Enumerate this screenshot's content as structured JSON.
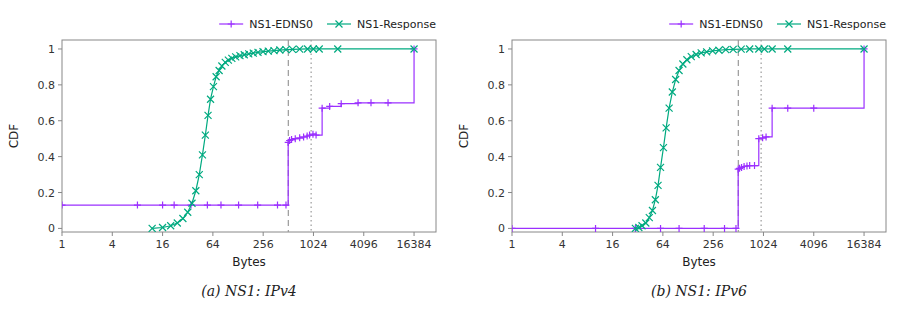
{
  "chart_data": [
    {
      "type": "line",
      "title": "(a)  NS1: IPv4",
      "xlabel": "Bytes",
      "ylabel": "CDF",
      "log": "x",
      "grid": false,
      "legend": "top",
      "xlim": [
        1,
        30000
      ],
      "ylim": [
        -0.02,
        1.05
      ],
      "xticks": [
        1,
        4,
        16,
        64,
        256,
        1024,
        4096,
        16384
      ],
      "yticks": [
        0,
        0.2,
        0.4,
        0.6,
        0.8,
        1
      ],
      "vlines": [
        {
          "value": 512,
          "line_style": "dashed"
        },
        {
          "value": 960,
          "line_style": "dotted"
        }
      ],
      "series": [
        {
          "name": "NS1-EDNS0",
          "color": "#9B30FF",
          "line_style": "step",
          "marker": "plus",
          "x": [
            1,
            8,
            16,
            22,
            35,
            55,
            80,
            130,
            220,
            380,
            480,
            510,
            530,
            560,
            620,
            700,
            780,
            860,
            920,
            1010,
            1100,
            1300,
            1600,
            2200,
            3500,
            5000,
            8000,
            16384
          ],
          "values": [
            0.13,
            0.13,
            0.13,
            0.13,
            0.13,
            0.13,
            0.13,
            0.13,
            0.13,
            0.13,
            0.13,
            0.48,
            0.49,
            0.495,
            0.5,
            0.505,
            0.51,
            0.515,
            0.52,
            0.525,
            0.52,
            0.67,
            0.68,
            0.695,
            0.7,
            0.7,
            0.7,
            1.0
          ]
        },
        {
          "name": "NS1-Response",
          "color": "#00AA80",
          "line_style": "solid",
          "marker": "x",
          "x": [
            12,
            16,
            20,
            24,
            28,
            32,
            36,
            40,
            44,
            48,
            52,
            56,
            60,
            65,
            70,
            76,
            82,
            90,
            98,
            108,
            120,
            135,
            152,
            172,
            195,
            222,
            255,
            295,
            345,
            405,
            480,
            575,
            700,
            870,
            1020,
            1200,
            2000,
            16384
          ],
          "values": [
            0.0,
            0.005,
            0.015,
            0.03,
            0.055,
            0.09,
            0.14,
            0.21,
            0.3,
            0.41,
            0.52,
            0.63,
            0.72,
            0.79,
            0.845,
            0.88,
            0.905,
            0.925,
            0.938,
            0.948,
            0.956,
            0.963,
            0.968,
            0.973,
            0.977,
            0.981,
            0.985,
            0.988,
            0.991,
            0.994,
            0.996,
            0.998,
            0.999,
            1.0,
            1.0,
            1.0,
            1.0,
            1.0
          ]
        }
      ]
    },
    {
      "type": "line",
      "title": "(b)  NS1: IPv6",
      "xlabel": "Bytes",
      "ylabel": "CDF",
      "log": "x",
      "grid": false,
      "legend": "top",
      "xlim": [
        1,
        30000
      ],
      "ylim": [
        -0.02,
        1.05
      ],
      "xticks": [
        1,
        4,
        16,
        64,
        256,
        1024,
        4096,
        16384
      ],
      "yticks": [
        0,
        0.2,
        0.4,
        0.6,
        0.8,
        1
      ],
      "vlines": [
        {
          "value": 512,
          "line_style": "dashed"
        },
        {
          "value": 960,
          "line_style": "dotted"
        }
      ],
      "series": [
        {
          "name": "NS1-EDNS0",
          "color": "#9B30FF",
          "line_style": "step",
          "marker": "plus",
          "x": [
            1,
            10,
            30,
            60,
            100,
            200,
            350,
            480,
            510,
            530,
            560,
            600,
            650,
            700,
            800,
            900,
            1000,
            1100,
            1300,
            2000,
            4096,
            16384
          ],
          "values": [
            0.0,
            0.0,
            0.0,
            0.0,
            0.0,
            0.0,
            0.0,
            0.0,
            0.33,
            0.335,
            0.34,
            0.345,
            0.348,
            0.35,
            0.35,
            0.5,
            0.505,
            0.51,
            0.67,
            0.67,
            0.67,
            1.0
          ]
        },
        {
          "name": "NS1-Response",
          "color": "#00AA80",
          "line_style": "solid",
          "marker": "x",
          "x": [
            30,
            33,
            36,
            40,
            44,
            48,
            52,
            56,
            60,
            65,
            70,
            76,
            83,
            91,
            100,
            111,
            124,
            140,
            160,
            184,
            214,
            252,
            300,
            362,
            444,
            554,
            700,
            900,
            1050,
            1300,
            2000,
            16384
          ],
          "values": [
            0.0,
            0.005,
            0.015,
            0.03,
            0.06,
            0.1,
            0.16,
            0.24,
            0.34,
            0.45,
            0.56,
            0.67,
            0.76,
            0.83,
            0.88,
            0.916,
            0.94,
            0.957,
            0.969,
            0.978,
            0.984,
            0.989,
            0.993,
            0.996,
            0.998,
            0.999,
            1.0,
            1.0,
            1.0,
            1.0,
            1.0,
            1.0
          ]
        }
      ]
    }
  ]
}
